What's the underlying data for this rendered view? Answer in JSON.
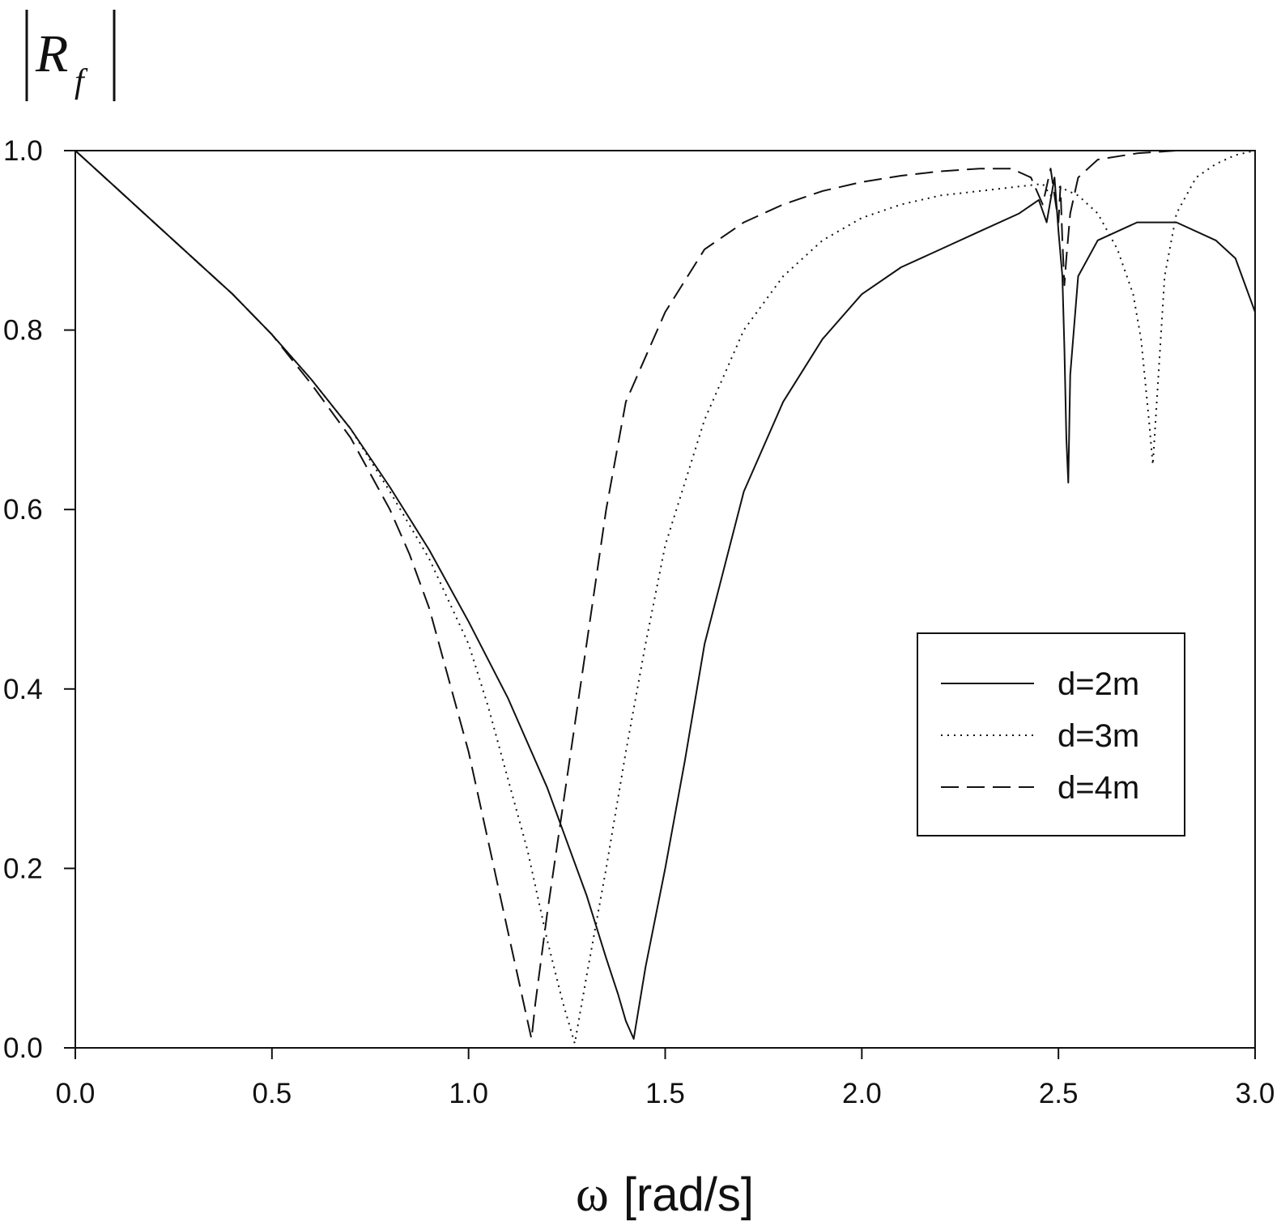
{
  "chart_data": {
    "type": "line",
    "xlabel": {
      "symbol": "ω",
      "unit": "[rad/s]"
    },
    "ylabel": {
      "symbol": "R",
      "subscript": "f"
    },
    "xlim": [
      0,
      3.0
    ],
    "ylim": [
      0,
      1.0
    ],
    "xticks": [
      "0.0",
      "0.5",
      "1.0",
      "1.5",
      "2.0",
      "2.5",
      "3.0"
    ],
    "yticks": [
      "0.0",
      "0.2",
      "0.4",
      "0.6",
      "0.8",
      "1.0"
    ],
    "grid": false,
    "legend_position": "right",
    "series": [
      {
        "name": "d=2m",
        "style": "solid",
        "x": [
          0,
          0.1,
          0.2,
          0.3,
          0.4,
          0.5,
          0.6,
          0.7,
          0.8,
          0.9,
          1.0,
          1.1,
          1.2,
          1.25,
          1.3,
          1.35,
          1.38,
          1.4,
          1.42,
          1.45,
          1.5,
          1.55,
          1.6,
          1.7,
          1.8,
          1.9,
          2.0,
          2.1,
          2.2,
          2.3,
          2.4,
          2.45,
          2.47,
          2.49,
          2.5,
          2.51,
          2.515,
          2.52,
          2.525,
          2.53,
          2.55,
          2.6,
          2.7,
          2.8,
          2.9,
          2.95,
          3.0
        ],
        "y": [
          1.0,
          0.96,
          0.92,
          0.88,
          0.84,
          0.795,
          0.745,
          0.69,
          0.625,
          0.555,
          0.475,
          0.39,
          0.29,
          0.23,
          0.17,
          0.1,
          0.06,
          0.03,
          0.01,
          0.09,
          0.2,
          0.32,
          0.45,
          0.62,
          0.72,
          0.79,
          0.84,
          0.87,
          0.89,
          0.91,
          0.93,
          0.945,
          0.92,
          0.97,
          0.91,
          0.86,
          0.78,
          0.68,
          0.63,
          0.75,
          0.86,
          0.9,
          0.92,
          0.92,
          0.9,
          0.88,
          0.82
        ]
      },
      {
        "name": "d=3m",
        "style": "dotted",
        "x": [
          0,
          0.1,
          0.2,
          0.3,
          0.4,
          0.5,
          0.6,
          0.7,
          0.8,
          0.9,
          1.0,
          1.05,
          1.1,
          1.15,
          1.2,
          1.24,
          1.27,
          1.3,
          1.35,
          1.4,
          1.45,
          1.5,
          1.6,
          1.7,
          1.8,
          1.9,
          2.0,
          2.1,
          2.2,
          2.3,
          2.4,
          2.46,
          2.48,
          2.5,
          2.55,
          2.6,
          2.65,
          2.69,
          2.71,
          2.73,
          2.74,
          2.75,
          2.77,
          2.8,
          2.85,
          2.9,
          2.95,
          3.0
        ],
        "y": [
          1.0,
          0.96,
          0.92,
          0.88,
          0.84,
          0.795,
          0.745,
          0.69,
          0.62,
          0.545,
          0.45,
          0.38,
          0.3,
          0.22,
          0.12,
          0.05,
          0.005,
          0.08,
          0.2,
          0.33,
          0.45,
          0.56,
          0.7,
          0.8,
          0.86,
          0.9,
          0.925,
          0.94,
          0.95,
          0.955,
          0.96,
          0.963,
          0.95,
          0.96,
          0.95,
          0.93,
          0.89,
          0.84,
          0.79,
          0.7,
          0.65,
          0.72,
          0.86,
          0.93,
          0.97,
          0.985,
          0.995,
          1.0
        ]
      },
      {
        "name": "d=4m",
        "style": "dashed",
        "x": [
          0,
          0.1,
          0.2,
          0.3,
          0.4,
          0.5,
          0.6,
          0.7,
          0.8,
          0.85,
          0.9,
          0.95,
          1.0,
          1.05,
          1.1,
          1.13,
          1.15,
          1.16,
          1.17,
          1.2,
          1.25,
          1.3,
          1.35,
          1.4,
          1.5,
          1.6,
          1.7,
          1.8,
          1.9,
          2.0,
          2.1,
          2.2,
          2.3,
          2.38,
          2.43,
          2.46,
          2.48,
          2.49,
          2.5,
          2.505,
          2.51,
          2.515,
          2.52,
          2.53,
          2.55,
          2.6,
          2.7,
          2.8,
          2.9,
          3.0
        ],
        "y": [
          1.0,
          0.96,
          0.92,
          0.88,
          0.84,
          0.795,
          0.74,
          0.68,
          0.6,
          0.55,
          0.49,
          0.41,
          0.33,
          0.23,
          0.13,
          0.07,
          0.03,
          0.01,
          0.05,
          0.15,
          0.3,
          0.45,
          0.6,
          0.72,
          0.82,
          0.89,
          0.92,
          0.94,
          0.955,
          0.965,
          0.972,
          0.977,
          0.98,
          0.98,
          0.97,
          0.94,
          0.98,
          0.95,
          0.92,
          0.96,
          0.9,
          0.85,
          0.88,
          0.93,
          0.97,
          0.99,
          0.997,
          1.0,
          1.0,
          1.0
        ]
      }
    ]
  }
}
